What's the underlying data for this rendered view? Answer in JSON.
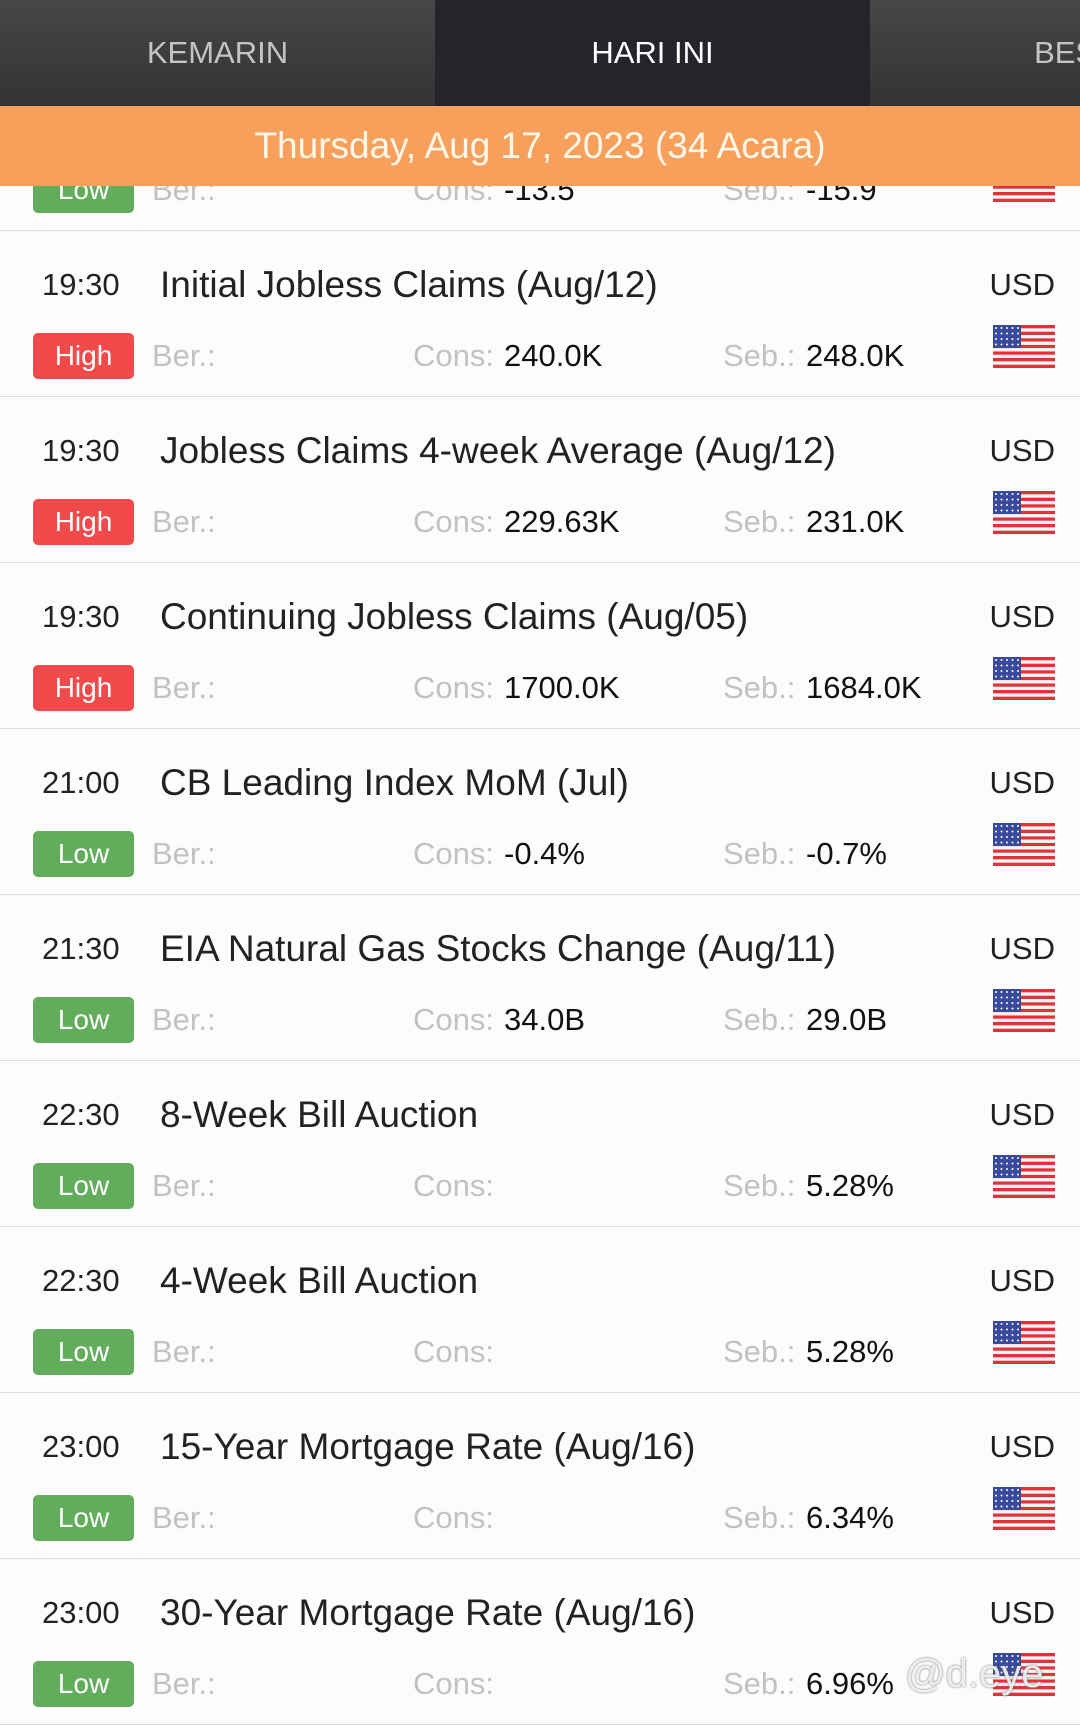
{
  "tabs": [
    "KEMARIN",
    "HARI INI",
    "BESOK"
  ],
  "date_header": "Thursday, Aug 17, 2023 (34 Acara)",
  "labels": {
    "actual": "Ber.:",
    "consensus": "Cons:",
    "previous": "Seb.:"
  },
  "events": [
    {
      "impact": "Low",
      "consensus": "-13.5",
      "previous": "-15.9"
    },
    {
      "time": "19:30",
      "title": "Initial Jobless Claims (Aug/12)",
      "currency": "USD",
      "impact": "High",
      "consensus": "240.0K",
      "previous": "248.0K"
    },
    {
      "time": "19:30",
      "title": "Jobless Claims 4-week Average (Aug/12)",
      "currency": "USD",
      "impact": "High",
      "consensus": "229.63K",
      "previous": "231.0K"
    },
    {
      "time": "19:30",
      "title": "Continuing Jobless Claims (Aug/05)",
      "currency": "USD",
      "impact": "High",
      "consensus": "1700.0K",
      "previous": "1684.0K"
    },
    {
      "time": "21:00",
      "title": "CB Leading Index MoM (Jul)",
      "currency": "USD",
      "impact": "Low",
      "consensus": "-0.4%",
      "previous": "-0.7%"
    },
    {
      "time": "21:30",
      "title": "EIA Natural Gas Stocks Change (Aug/11)",
      "currency": "USD",
      "impact": "Low",
      "consensus": "34.0B",
      "previous": "29.0B"
    },
    {
      "time": "22:30",
      "title": "8-Week Bill Auction",
      "currency": "USD",
      "impact": "Low",
      "previous": "5.28%"
    },
    {
      "time": "22:30",
      "title": "4-Week Bill Auction",
      "currency": "USD",
      "impact": "Low",
      "previous": "5.28%"
    },
    {
      "time": "23:00",
      "title": "15-Year Mortgage Rate (Aug/16)",
      "currency": "USD",
      "impact": "Low",
      "previous": "6.34%"
    },
    {
      "time": "23:00",
      "title": "30-Year Mortgage Rate (Aug/16)",
      "currency": "USD",
      "impact": "Low",
      "previous": "6.96%"
    }
  ],
  "watermark": "@d.eye"
}
